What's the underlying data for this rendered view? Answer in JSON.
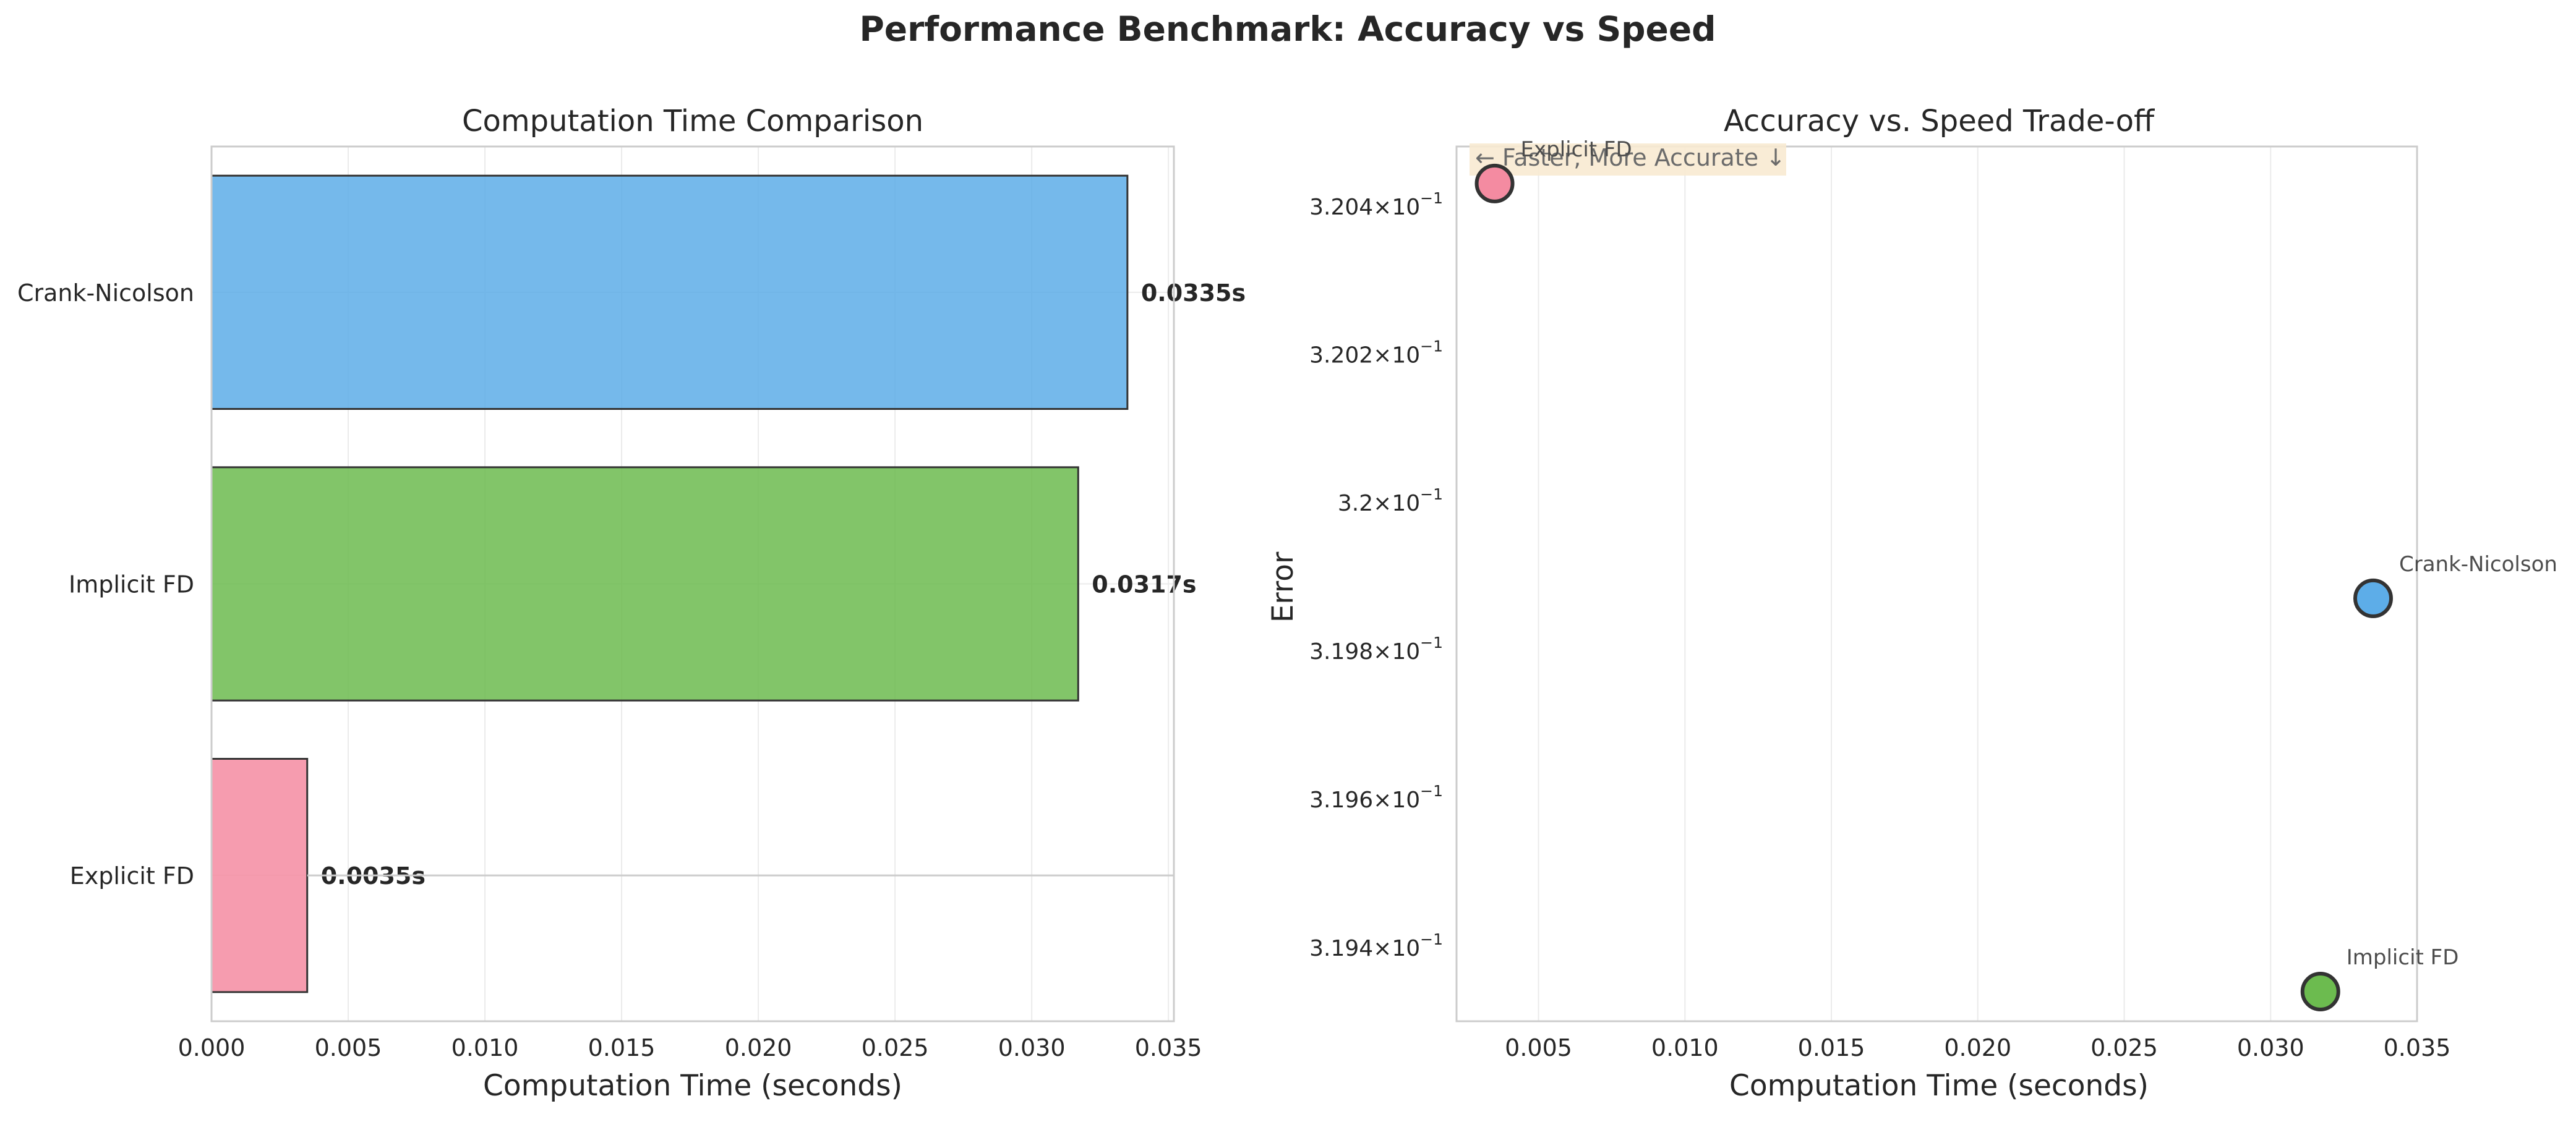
{
  "figure_title": "Performance Benchmark: Accuracy vs Speed",
  "colors": {
    "background": "#ffffff",
    "grid": "#ebebeb",
    "spine": "#cccccc",
    "edge": "#333333",
    "text": "#262626",
    "annotation_fill": "#f8ead2",
    "annotation_text": "#6b6b6b",
    "point_label": "#4d4d4d"
  },
  "chart_data": [
    {
      "type": "bar",
      "orientation": "horizontal",
      "title": "Computation Time Comparison",
      "xlabel": "Computation Time (seconds)",
      "ylabel": "",
      "categories": [
        "Crank-Nicolson",
        "Implicit FD",
        "Explicit FD"
      ],
      "values": [
        0.0335,
        0.0317,
        0.0035
      ],
      "data_labels": [
        "0.0335s",
        "0.0317s",
        "0.0035s"
      ],
      "bar_colors": [
        "#5dade8",
        "#6cbb4f",
        "#f48ba1"
      ],
      "xlim": [
        0,
        0.0352
      ],
      "xticks": [
        0.0,
        0.005,
        0.01,
        0.015,
        0.02,
        0.025,
        0.03,
        0.035
      ],
      "xtick_labels": [
        "0.000",
        "0.005",
        "0.010",
        "0.015",
        "0.020",
        "0.025",
        "0.030",
        "0.035"
      ],
      "grid": true,
      "extra_line": {
        "y_category": "Explicit FD",
        "color": "#cccccc"
      }
    },
    {
      "type": "scatter",
      "title": "Accuracy vs. Speed Trade-off",
      "xlabel": "Computation Time (seconds)",
      "ylabel": "Error",
      "yscale": "log",
      "points": [
        {
          "label": "Explicit FD",
          "x": 0.0035,
          "y": 0.32043,
          "color": "#f48ba1"
        },
        {
          "label": "Crank-Nicolson",
          "x": 0.0335,
          "y": 0.31987,
          "color": "#5dade8"
        },
        {
          "label": "Implicit FD",
          "x": 0.0317,
          "y": 0.31934,
          "color": "#6cbb4f"
        }
      ],
      "xlim": [
        0.0022,
        0.035
      ],
      "ylim": [
        0.3193,
        0.32048
      ],
      "xticks": [
        0.005,
        0.01,
        0.015,
        0.02,
        0.025,
        0.03,
        0.035
      ],
      "xtick_labels": [
        "0.005",
        "0.010",
        "0.015",
        "0.020",
        "0.025",
        "0.030",
        "0.035"
      ],
      "yticks": [
        0.3194,
        0.3196,
        0.3198,
        0.32,
        0.3202,
        0.3204
      ],
      "ytick_labels": [
        {
          "mantissa": "3.194",
          "exponent": "−1"
        },
        {
          "mantissa": "3.196",
          "exponent": "−1"
        },
        {
          "mantissa": "3.198",
          "exponent": "−1"
        },
        {
          "mantissa": "3.2",
          "exponent": "−1"
        },
        {
          "mantissa": "3.202",
          "exponent": "−1"
        },
        {
          "mantissa": "3.204",
          "exponent": "−1"
        }
      ],
      "annotation": "← Faster, More Accurate ↓",
      "grid": true
    }
  ]
}
